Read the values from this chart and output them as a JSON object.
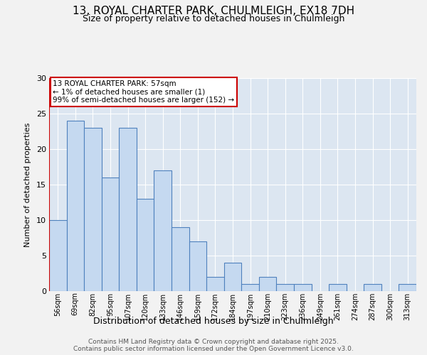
{
  "title_line1": "13, ROYAL CHARTER PARK, CHULMLEIGH, EX18 7DH",
  "title_line2": "Size of property relative to detached houses in Chulmleigh",
  "xlabel": "Distribution of detached houses by size in Chulmleigh",
  "ylabel": "Number of detached properties",
  "categories": [
    "56sqm",
    "69sqm",
    "82sqm",
    "95sqm",
    "107sqm",
    "120sqm",
    "133sqm",
    "146sqm",
    "159sqm",
    "172sqm",
    "184sqm",
    "197sqm",
    "210sqm",
    "223sqm",
    "236sqm",
    "249sqm",
    "261sqm",
    "274sqm",
    "287sqm",
    "300sqm",
    "313sqm"
  ],
  "values": [
    10,
    24,
    23,
    16,
    23,
    13,
    17,
    9,
    7,
    2,
    4,
    1,
    2,
    1,
    1,
    0,
    1,
    0,
    1,
    0,
    1
  ],
  "bar_color": "#c5d9f0",
  "bar_edge_color": "#4f81bd",
  "annotation_text": "13 ROYAL CHARTER PARK: 57sqm\n← 1% of detached houses are smaller (1)\n99% of semi-detached houses are larger (152) →",
  "annotation_box_color": "#ffffff",
  "annotation_box_edge": "#cc0000",
  "red_line_x": -0.5,
  "ylim": [
    0,
    30
  ],
  "yticks": [
    0,
    5,
    10,
    15,
    20,
    25,
    30
  ],
  "plot_bg_color": "#dce6f1",
  "fig_bg_color": "#f2f2f2",
  "grid_color": "#ffffff",
  "footer_line1": "Contains HM Land Registry data © Crown copyright and database right 2025.",
  "footer_line2": "Contains public sector information licensed under the Open Government Licence v3.0."
}
